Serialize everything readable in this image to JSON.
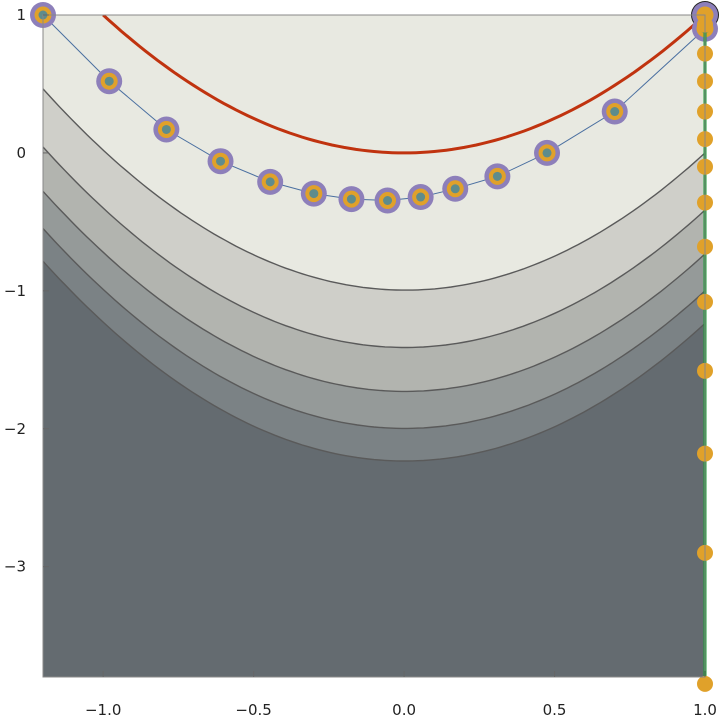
{
  "chart_data": {
    "type": "contour",
    "xlim": [
      -1.2,
      1.0
    ],
    "ylim": [
      -3.8,
      1.0
    ],
    "x_ticks": [
      -1.0,
      -0.5,
      0.0,
      0.5,
      1.0
    ],
    "x_tick_labels": [
      "−1.0",
      "−0.5",
      "0.0",
      "0.5",
      "1.0"
    ],
    "y_ticks": [
      1,
      0,
      -1,
      -2,
      -3
    ],
    "y_tick_labels": [
      "1",
      "0",
      "−1",
      "−2",
      "−3"
    ],
    "contour_levels": [
      1,
      2,
      3,
      4,
      5
    ],
    "contour_fills": [
      "#e8e9e1",
      "#cfcfc9",
      "#b2b4af",
      "#959a99",
      "#7b8285",
      "#646b70",
      "#4f555b"
    ],
    "contour_line_color": "#5a5a5a",
    "curve": {
      "name": "y = x^2",
      "x_range": [
        -1.0,
        1.0
      ],
      "color": "#c0330f"
    },
    "path_a": {
      "line_color": "#4a6fa0",
      "outer_color": "#8d7fba",
      "ring_color": "#e0a12a",
      "center_color": "#5e8c8c",
      "points": [
        {
          "x": -1.2,
          "y": 1.0
        },
        {
          "x": -0.98,
          "y": 0.52
        },
        {
          "x": -0.79,
          "y": 0.17
        },
        {
          "x": -0.61,
          "y": -0.06
        },
        {
          "x": -0.445,
          "y": -0.21
        },
        {
          "x": -0.3,
          "y": -0.295
        },
        {
          "x": -0.175,
          "y": -0.335
        },
        {
          "x": -0.055,
          "y": -0.345
        },
        {
          "x": 0.055,
          "y": -0.32
        },
        {
          "x": 0.17,
          "y": -0.26
        },
        {
          "x": 0.31,
          "y": -0.17
        },
        {
          "x": 0.475,
          "y": 0.0
        },
        {
          "x": 0.7,
          "y": 0.3
        },
        {
          "x": 1.0,
          "y": 0.9
        },
        {
          "x": 1.0,
          "y": 1.0
        }
      ]
    },
    "path_b": {
      "line_color": "#1f9a3a",
      "dot_color": "#e0a12a",
      "x": 1.0,
      "y_values": [
        1.0,
        0.93,
        0.72,
        0.52,
        0.3,
        0.1,
        -0.1,
        -0.36,
        -0.68,
        -1.08,
        -1.58,
        -2.18,
        -2.9,
        -3.85
      ]
    },
    "optimum": {
      "x": 1.0,
      "y": 1.0,
      "color": "#222222"
    }
  }
}
